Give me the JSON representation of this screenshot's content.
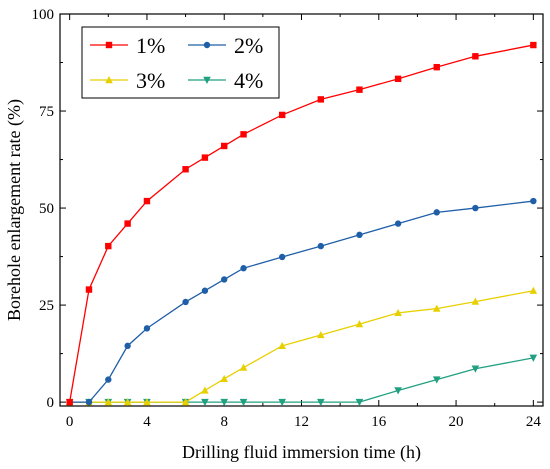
{
  "chart_data": {
    "type": "line",
    "title": "",
    "xlabel": "Drilling fluid immersion time (h)",
    "ylabel": "Borehole enlargement rate (%)",
    "xlim": [
      -0.5,
      24.5
    ],
    "ylim": [
      -1,
      100
    ],
    "xticks": [
      0,
      4,
      8,
      12,
      16,
      20,
      24
    ],
    "yticks": [
      0,
      25,
      50,
      75,
      100
    ],
    "grid": false,
    "legend_position": "top-left",
    "series": [
      {
        "name": "1%",
        "color": "#ff0000",
        "marker": "square",
        "x": [
          0,
          1,
          2,
          3,
          4,
          6,
          7,
          8,
          9,
          11,
          13,
          15,
          17,
          19,
          21,
          24
        ],
        "y": [
          0,
          29,
          40.2,
          46,
          51.8,
          60,
          63,
          66,
          69,
          74,
          78,
          80.5,
          83.3,
          86.3,
          89.1,
          92
        ]
      },
      {
        "name": "2%",
        "color": "#1f5fa8",
        "marker": "circle",
        "x": [
          0,
          1,
          2,
          3,
          4,
          6,
          7,
          8,
          9,
          11,
          13,
          15,
          17,
          19,
          21,
          24
        ],
        "y": [
          0,
          0,
          5.8,
          14.5,
          19,
          25.8,
          28.7,
          31.6,
          34.5,
          37.4,
          40.2,
          43.1,
          46,
          48.9,
          50,
          51.8
        ]
      },
      {
        "name": "3%",
        "color": "#e8d000",
        "marker": "triangle-up",
        "x": [
          0,
          1,
          2,
          3,
          4,
          6,
          7,
          8,
          9,
          11,
          13,
          15,
          17,
          19,
          21,
          24
        ],
        "y": [
          0,
          0,
          0,
          0,
          0,
          0,
          3,
          6,
          8.9,
          14.5,
          17.3,
          20.1,
          23,
          24.1,
          25.9,
          28.7
        ]
      },
      {
        "name": "4%",
        "color": "#20a080",
        "marker": "triangle-down",
        "x": [
          0,
          1,
          2,
          3,
          4,
          6,
          7,
          8,
          9,
          11,
          13,
          15,
          17,
          19,
          21,
          24
        ],
        "y": [
          0,
          0,
          0,
          0,
          0,
          0,
          0,
          0,
          0,
          0,
          0,
          0,
          3,
          5.8,
          8.6,
          11.4
        ]
      }
    ]
  }
}
